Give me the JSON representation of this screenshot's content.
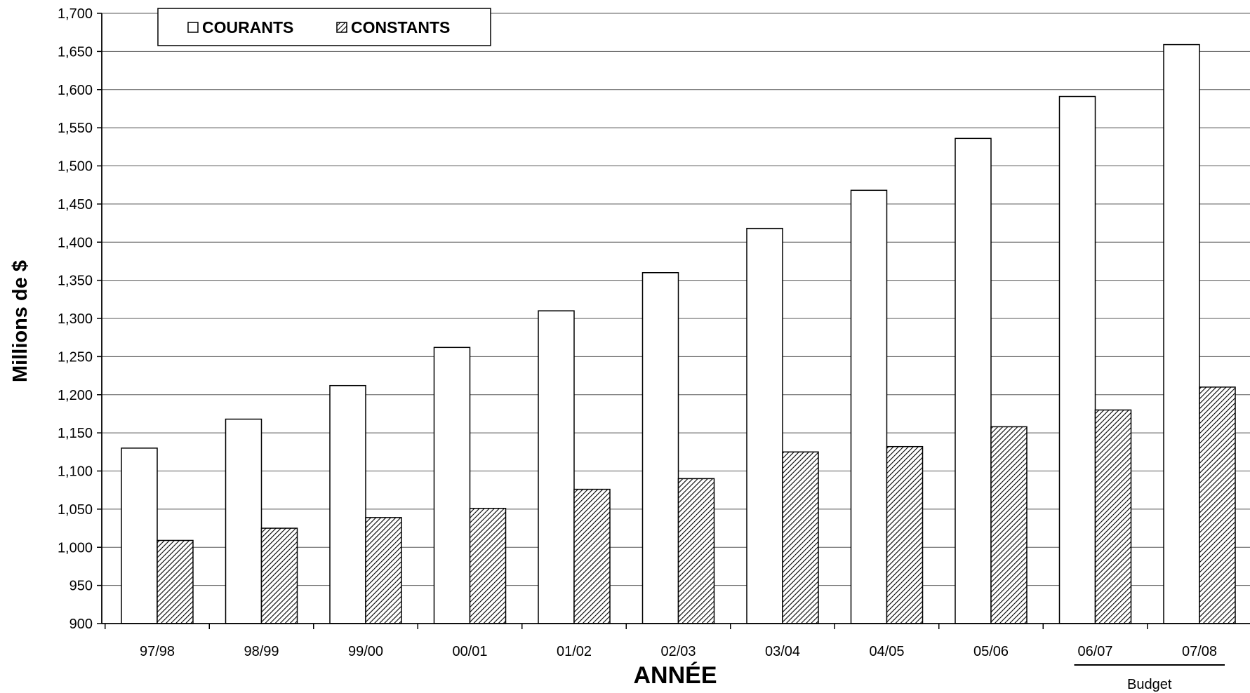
{
  "chart_data": {
    "type": "bar",
    "title": "",
    "xlabel": "ANNÉE",
    "ylabel": "Millions de $",
    "ylim": [
      900,
      1700
    ],
    "ytick_step": 50,
    "grid": true,
    "legend_position": "top-left",
    "categories": [
      "97/98",
      "98/99",
      "99/00",
      "00/01",
      "01/02",
      "02/03",
      "03/04",
      "04/05",
      "05/06",
      "06/07",
      "07/08"
    ],
    "series": [
      {
        "name": "COURANTS",
        "pattern": "empty",
        "color": "#ffffff",
        "values": [
          1130,
          1168,
          1212,
          1262,
          1310,
          1360,
          1418,
          1468,
          1536,
          1591,
          1659
        ]
      },
      {
        "name": "CONSTANTS",
        "pattern": "hatched",
        "color": "#000000",
        "values": [
          1009,
          1025,
          1039,
          1051,
          1076,
          1090,
          1125,
          1132,
          1158,
          1180,
          1210
        ]
      }
    ],
    "annotation": {
      "text": "Budget",
      "categories": [
        "06/07",
        "07/08"
      ]
    }
  }
}
